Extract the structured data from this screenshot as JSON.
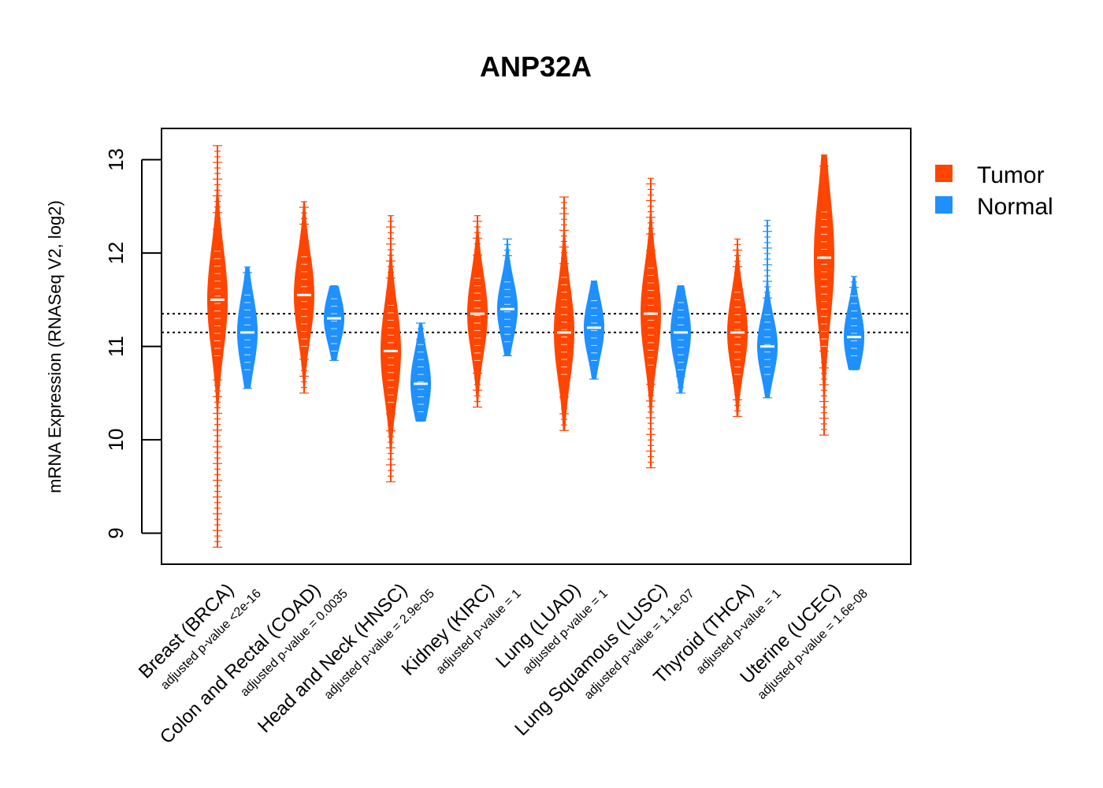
{
  "chart_data": {
    "type": "violin",
    "title": "ANP32A",
    "ylabel": "mRNA Expression (RNASeq V2, log2)",
    "xlabel": "",
    "ylim": [
      8.7,
      13.35
    ],
    "yticks": [
      9,
      10,
      11,
      12,
      13
    ],
    "ytick_labels": [
      "9",
      "10",
      "11",
      "12",
      "13"
    ],
    "reference_lines": [
      11.15,
      11.35
    ],
    "colors": {
      "Tumor": "#ff4500",
      "Normal": "#1e90ff"
    },
    "legend": [
      {
        "name": "Tumor",
        "color": "#ff4500"
      },
      {
        "name": "Normal",
        "color": "#1e90ff"
      }
    ],
    "categories": [
      {
        "label": "Breast (BRCA)",
        "pvalue": "adjusted p-value <2e-16",
        "tumor": {
          "min": 8.85,
          "max": 13.15,
          "q_low": 10.9,
          "q_high": 12.1,
          "median": 11.5
        },
        "normal": {
          "min": 10.55,
          "max": 11.85,
          "q_low": 10.75,
          "q_high": 11.6,
          "median": 11.15
        }
      },
      {
        "label": "Colon and Rectal (COAD)",
        "pvalue": "adjusted p-value = 0.0035",
        "tumor": {
          "min": 10.5,
          "max": 12.55,
          "q_low": 11.0,
          "q_high": 12.0,
          "median": 11.55
        },
        "normal": {
          "min": 10.85,
          "max": 11.65,
          "q_low": 10.95,
          "q_high": 11.55,
          "median": 11.3
        }
      },
      {
        "label": "Head and Neck (HNSC)",
        "pvalue": "adjusted p-value = 2.9e-05",
        "tumor": {
          "min": 9.55,
          "max": 12.4,
          "q_low": 10.4,
          "q_high": 11.5,
          "median": 10.95
        },
        "normal": {
          "min": 10.2,
          "max": 11.25,
          "q_low": 10.3,
          "q_high": 11.05,
          "median": 10.6
        }
      },
      {
        "label": "Kidney (KIRC)",
        "pvalue": "adjusted p-value = 1",
        "tumor": {
          "min": 10.35,
          "max": 12.4,
          "q_low": 10.85,
          "q_high": 11.8,
          "median": 11.35
        },
        "normal": {
          "min": 10.9,
          "max": 12.15,
          "q_low": 11.05,
          "q_high": 11.75,
          "median": 11.4
        }
      },
      {
        "label": "Lung (LUAD)",
        "pvalue": "adjusted p-value = 1",
        "tumor": {
          "min": 10.1,
          "max": 12.6,
          "q_low": 10.7,
          "q_high": 11.8,
          "median": 11.15
        },
        "normal": {
          "min": 10.65,
          "max": 11.7,
          "q_low": 10.85,
          "q_high": 11.55,
          "median": 11.2
        }
      },
      {
        "label": "Lung Squamous (LUSC)",
        "pvalue": "adjusted p-value = 1.1e-07",
        "tumor": {
          "min": 9.7,
          "max": 12.8,
          "q_low": 10.8,
          "q_high": 11.9,
          "median": 11.35
        },
        "normal": {
          "min": 10.5,
          "max": 11.65,
          "q_low": 10.75,
          "q_high": 11.5,
          "median": 11.15
        }
      },
      {
        "label": "Thyroid (THCA)",
        "pvalue": "adjusted p-value = 1",
        "tumor": {
          "min": 10.25,
          "max": 12.15,
          "q_low": 10.7,
          "q_high": 11.6,
          "median": 11.15
        },
        "normal": {
          "min": 10.45,
          "max": 12.35,
          "q_low": 10.7,
          "q_high": 11.4,
          "median": 11.0
        }
      },
      {
        "label": "Uterine (UCEC)",
        "pvalue": "adjusted p-value = 1.6e-08",
        "tumor": {
          "min": 10.05,
          "max": 13.05,
          "q_low": 11.0,
          "q_high": 12.5,
          "median": 11.95
        },
        "normal": {
          "min": 10.75,
          "max": 11.75,
          "q_low": 10.9,
          "q_high": 11.6,
          "median": 11.1
        }
      }
    ]
  }
}
